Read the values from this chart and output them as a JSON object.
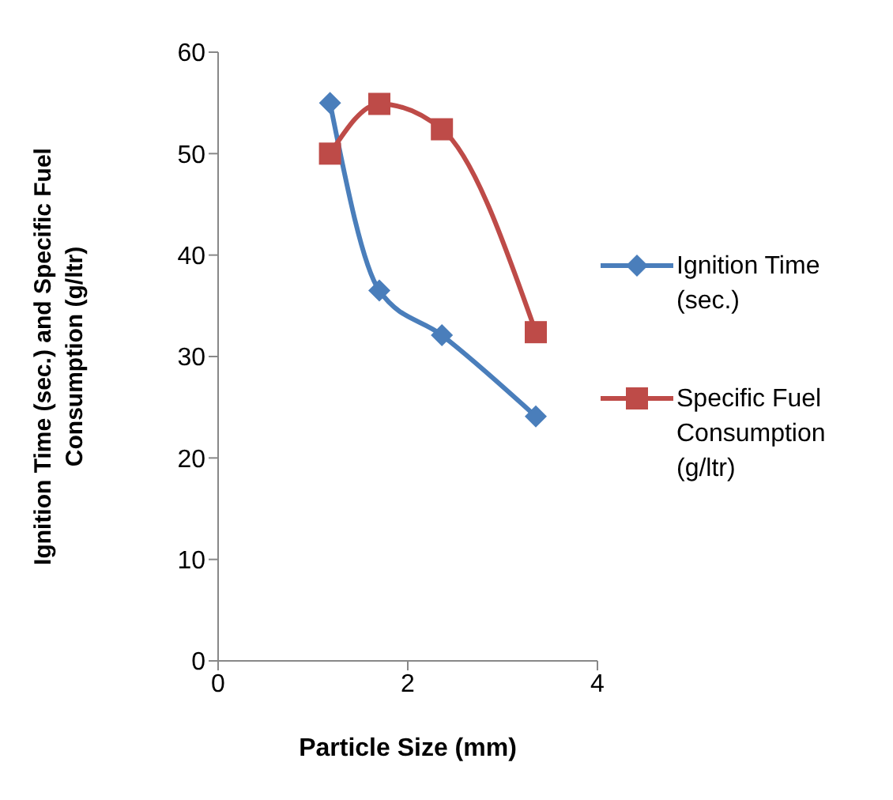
{
  "chart_data": {
    "type": "line",
    "xlabel": "Particle Size (mm)",
    "ylabel": "Ignition Time (sec.) and Specific Fuel Consumption (g/ltr)",
    "x": [
      1.18,
      1.7,
      2.36,
      3.35
    ],
    "series": [
      {
        "name": "Ignition Time (sec.)",
        "color": "#4a7ebb",
        "values": [
          55,
          36.5,
          32.1,
          24.1
        ],
        "marker": "diamond"
      },
      {
        "name": "Specific Fuel Consumption (g/ltr)",
        "color": "#be4b48",
        "values": [
          50,
          54.9,
          52.4,
          32.4
        ],
        "marker": "square"
      }
    ],
    "xlim": [
      0,
      4
    ],
    "xticks": [
      0,
      2,
      4
    ],
    "ylim": [
      0,
      60
    ],
    "yticks": [
      0,
      10,
      20,
      30,
      40,
      50,
      60
    ],
    "grid": false,
    "legend": "right"
  }
}
